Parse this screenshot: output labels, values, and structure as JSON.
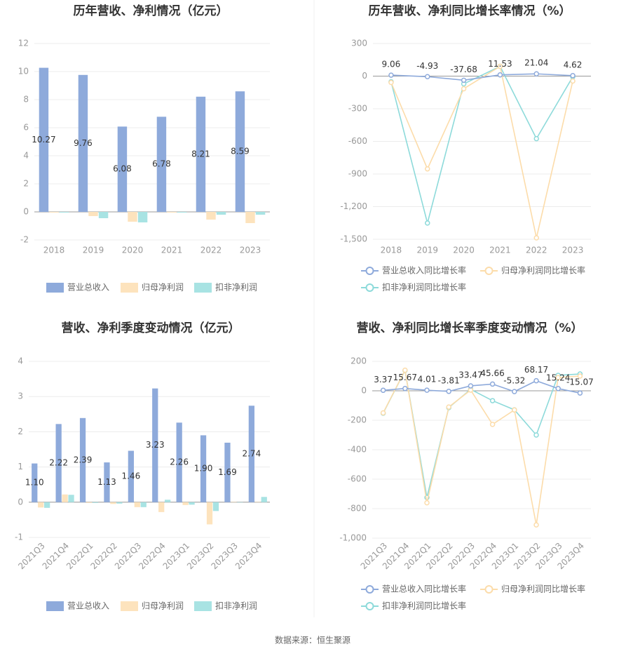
{
  "chart_data": [
    {
      "type": "bar",
      "title": "历年营收、净利情况（亿元）",
      "categories": [
        "2018",
        "2019",
        "2020",
        "2021",
        "2022",
        "2023"
      ],
      "series": [
        {
          "name": "营业总收入",
          "color": "#8eaadb",
          "values": [
            10.27,
            9.76,
            6.08,
            6.78,
            8.21,
            8.59
          ],
          "value_labels": [
            "10.27",
            "9.76",
            "6.08",
            "6.78",
            "8.21",
            "8.59"
          ]
        },
        {
          "name": "归母净利润",
          "color": "#fde3bd",
          "values": [
            -0.05,
            -0.3,
            -0.7,
            -0.05,
            -0.55,
            -0.8
          ]
        },
        {
          "name": "扣非净利润",
          "color": "#a8e3e3",
          "values": [
            -0.05,
            -0.45,
            -0.75,
            -0.05,
            -0.2,
            -0.2
          ]
        }
      ],
      "ylim": [
        -2,
        12
      ],
      "yticks": [
        -2,
        0,
        2,
        4,
        6,
        8,
        10,
        12
      ],
      "grid": true
    },
    {
      "type": "line",
      "title": "历年营收、净利同比增长率情况（%）",
      "categories": [
        "2018",
        "2019",
        "2020",
        "2021",
        "2022",
        "2023"
      ],
      "series": [
        {
          "name": "营业总收入同比增长率",
          "color": "#8eaadb",
          "values": [
            9.06,
            -4.93,
            -37.68,
            11.53,
            21.04,
            4.62
          ],
          "value_labels": [
            "9.06",
            "-4.93",
            "-37.68",
            "11.53",
            "21.04",
            "4.62"
          ]
        },
        {
          "name": "归母净利润同比增长率",
          "color": "#fcdcaa",
          "values": [
            -58,
            -853,
            -116,
            90,
            -1487,
            -45
          ]
        },
        {
          "name": "扣非净利润同比增长率",
          "color": "#8ddada",
          "values": [
            -52,
            -1351,
            -71,
            90,
            -575,
            -6
          ]
        }
      ],
      "ylim": [
        -1500,
        300
      ],
      "yticks": [
        {
          "value": -1500,
          "label": "-1,500"
        },
        {
          "value": -1200,
          "label": "-1,200"
        },
        -900,
        -600,
        -300,
        0,
        300
      ],
      "grid": true
    },
    {
      "type": "bar",
      "title": "营收、净利季度变动情况（亿元）",
      "categories": [
        "2021Q3",
        "2021Q4",
        "2022Q1",
        "2022Q2",
        "2022Q3",
        "2022Q4",
        "2023Q1",
        "2023Q2",
        "2023Q3",
        "2023Q4"
      ],
      "series": [
        {
          "name": "营业总收入",
          "color": "#8eaadb",
          "values": [
            1.1,
            2.22,
            2.39,
            1.13,
            1.46,
            3.23,
            2.26,
            1.9,
            1.69,
            2.74
          ],
          "value_labels": [
            "1.10",
            "2.22",
            "2.39",
            "1.13",
            "1.46",
            "3.23",
            "2.26",
            "1.90",
            "1.69",
            "2.74"
          ]
        },
        {
          "name": "归母净利润",
          "color": "#fde3bd",
          "values": [
            -0.15,
            0.22,
            -0.02,
            -0.05,
            -0.14,
            -0.28,
            -0.08,
            -0.63,
            0.01,
            0.01
          ]
        },
        {
          "name": "扣非净利润",
          "color": "#a8e3e3",
          "values": [
            -0.16,
            0.21,
            -0.02,
            -0.04,
            -0.14,
            0.07,
            -0.07,
            -0.25,
            0.0,
            0.15
          ]
        }
      ],
      "ylim": [
        -1,
        4
      ],
      "yticks": [
        -1,
        0,
        1,
        2,
        3,
        4
      ],
      "grid": true
    },
    {
      "type": "line",
      "title": "营收、净利同比增长率季度变动情况（%）",
      "categories": [
        "2021Q3",
        "2021Q4",
        "2022Q1",
        "2022Q2",
        "2022Q3",
        "2022Q4",
        "2023Q1",
        "2023Q2",
        "2023Q3",
        "2023Q4"
      ],
      "series": [
        {
          "name": "营业总收入同比增长率",
          "color": "#8eaadb",
          "values": [
            3.37,
            15.67,
            4.01,
            -3.81,
            33.47,
            45.66,
            -5.32,
            68.17,
            15.24,
            -15.07
          ],
          "value_labels": [
            "3.37",
            "15.67",
            "4.01",
            "-3.81",
            "33.47",
            "45.66",
            "-5.32",
            "68.17",
            "15.24",
            "-15.07"
          ]
        },
        {
          "name": "归母净利润同比增长率",
          "color": "#fcdcaa",
          "values": [
            -150,
            140,
            -760,
            -110,
            5,
            -228,
            -130,
            -910,
            90,
            100
          ]
        },
        {
          "name": "扣非净利润同比增长率",
          "color": "#8ddada",
          "values": [
            -152,
            138,
            -724,
            -114,
            10,
            -67,
            -129,
            -300,
            105,
            114
          ]
        }
      ],
      "ylim": [
        -1000,
        200
      ],
      "yticks": [
        {
          "value": -1000,
          "label": "-1,000"
        },
        -800,
        -600,
        -400,
        -200,
        0,
        200
      ],
      "grid": true
    }
  ],
  "footer": "数据来源：恒生聚源"
}
